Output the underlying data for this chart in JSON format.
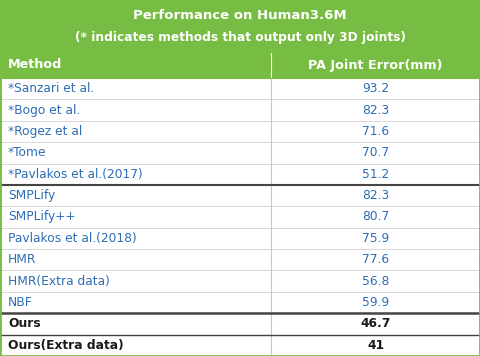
{
  "title_line1": "Performance on Human3.6M",
  "title_line2": "(* indicates methods that output only 3D joints)",
  "header": [
    "Method",
    "PA Joint Error(mm)"
  ],
  "rows": [
    [
      "*Sanzari et al.",
      "93.2",
      false
    ],
    [
      "*Bogo et al.",
      "82.3",
      false
    ],
    [
      "*Rogez et al",
      "71.6",
      false
    ],
    [
      "*Tome",
      "70.7",
      false
    ],
    [
      "*Pavlakos et al.(2017)",
      "51.2",
      false
    ],
    [
      "SMPLify",
      "82.3",
      false
    ],
    [
      "SMPLify++",
      "80.7",
      false
    ],
    [
      "Pavlakos et al.(2018)",
      "75.9",
      false
    ],
    [
      "HMR",
      "77.6",
      false
    ],
    [
      "HMR(Extra data)",
      "56.8",
      false
    ],
    [
      "NBF",
      "59.9",
      false
    ],
    [
      "Ours",
      "46.7",
      true
    ],
    [
      "Ours(Extra data)",
      "41",
      true
    ]
  ],
  "header_bg": "#77bc43",
  "title_bg": "#77bc43",
  "row_bg_normal": "#ffffff",
  "header_text_color": "#ffffff",
  "title_text_color": "#ffffff",
  "normal_text_color": "#2e6db4",
  "bold_text_color": "#1a1a1a",
  "border_color": "#c8c8c8",
  "thick_border_color": "#444444",
  "green_border_color": "#77bc43",
  "col_split": 0.565,
  "title_fontsize": 9.5,
  "title2_fontsize": 8.8,
  "header_fontsize": 9.2,
  "row_fontsize": 8.8
}
